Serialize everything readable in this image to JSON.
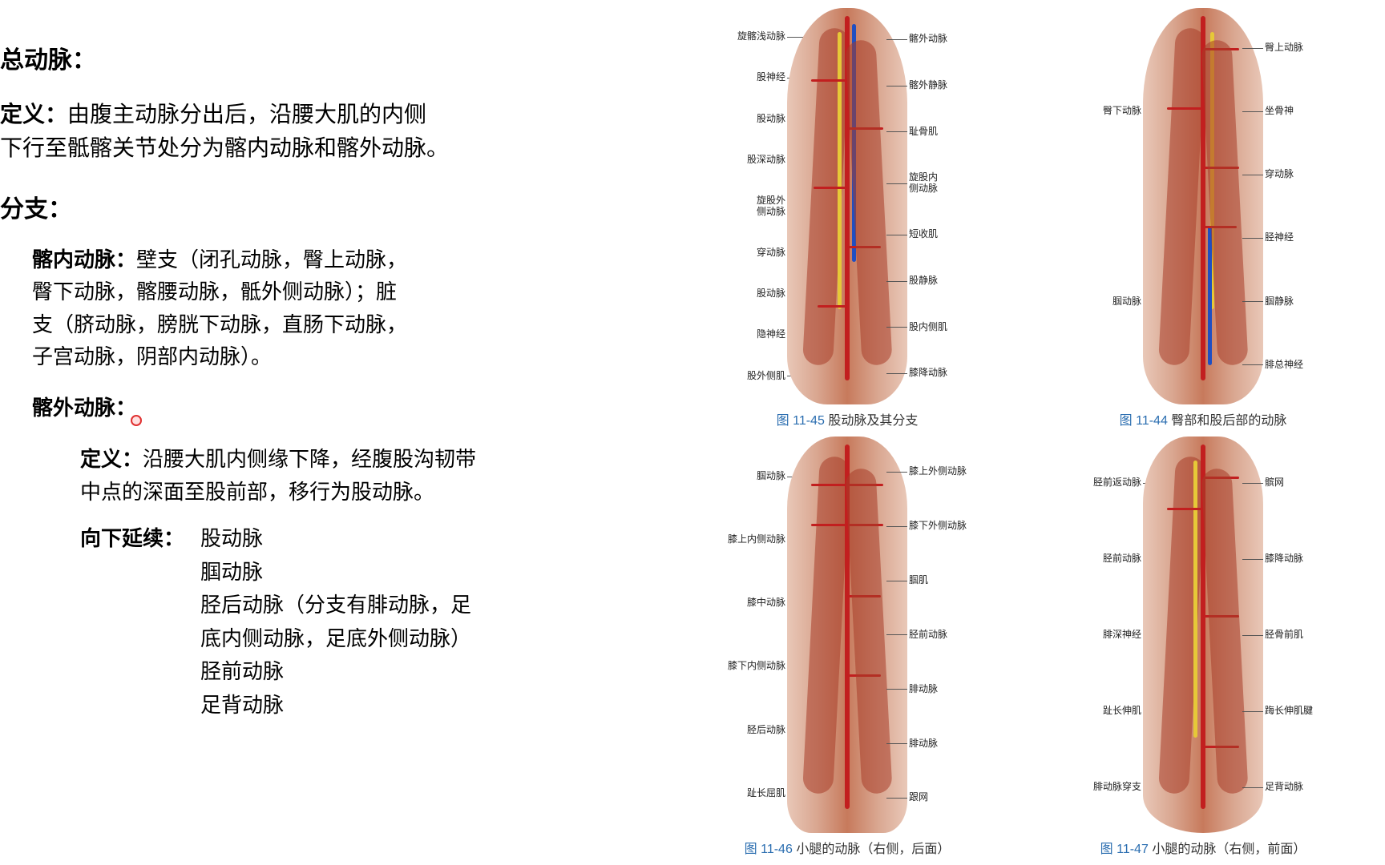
{
  "text": {
    "title": "总动脉：",
    "def_label": "定义：",
    "def_body": "由腹主动脉分出后，沿腰大肌的内侧\n下行至骶髂关节处分为髂内动脉和髂外动脉。",
    "branch_label": "分支：",
    "iliac_int_title": "髂内动脉：",
    "iliac_int_body": "壁支（闭孔动脉，臀上动脉，\n臀下动脉，髂腰动脉，骶外侧动脉）；脏\n支（脐动脉，膀胱下动脉，直肠下动脉，\n子宫动脉，阴部内动脉）。",
    "iliac_ext_title": "髂外动脉：",
    "ext_def_label": "定义：",
    "ext_def_body": "沿腰大肌内侧缘下降，经腹股沟韧带\n中点的深面至股前部，移行为股动脉。",
    "cont_label": "向下延续：",
    "cont_list": "股动脉\n腘动脉\n胫后动脉（分支有腓动脉，足\n底内侧动脉，足底外侧动脉）\n胫前动脉\n足背动脉"
  },
  "figures": [
    {
      "fignum": "图 11-45",
      "figtitle": "股动脉及其分支",
      "colors": {
        "muscle": "#c77a5c",
        "artery": "#c21f1f",
        "vein": "#1f4fc2",
        "nerve": "#e6c838"
      },
      "labels_left": [
        "旋髂浅动脉",
        "股神经",
        "股动脉",
        "股深动脉",
        "旋股外\n侧动脉",
        "穿动脉",
        "股动脉",
        "隐神经",
        "股外侧肌"
      ],
      "labels_right": [
        "髂外动脉",
        "髂外静脉",
        "耻骨肌",
        "旋股内\n侧动脉",
        "短收肌",
        "股静脉",
        "股内侧肌",
        "膝降动脉"
      ]
    },
    {
      "fignum": "图 11-44",
      "figtitle": "臀部和股后部的动脉",
      "colors": {
        "muscle": "#c77a5c",
        "artery": "#c21f1f",
        "vein": "#1f4fc2",
        "nerve": "#e6c838"
      },
      "labels_left": [
        "臀下动脉",
        "腘动脉"
      ],
      "labels_right": [
        "臀上动脉",
        "坐骨神",
        "穿动脉",
        "胫神经",
        "腘静脉",
        "腓总神经"
      ]
    },
    {
      "fignum": "图 11-46",
      "figtitle": "小腿的动脉（右侧，后面）",
      "colors": {
        "muscle": "#c77a5c",
        "artery": "#c21f1f",
        "vein": "#1f4fc2",
        "nerve": "#e6c838"
      },
      "labels_left": [
        "腘动脉",
        "膝上内侧动脉",
        "膝中动脉",
        "膝下内侧动脉",
        "胫后动脉",
        "趾长屈肌"
      ],
      "labels_right": [
        "膝上外侧动脉",
        "膝下外侧动脉",
        "腘肌",
        "胫前动脉",
        "腓动脉",
        "腓动脉",
        "跟网"
      ]
    },
    {
      "fignum": "图 11-47",
      "figtitle": "小腿的动脉（右侧，前面）",
      "colors": {
        "muscle": "#c77a5c",
        "artery": "#c21f1f",
        "vein": "#1f4fc2",
        "nerve": "#e6c838"
      },
      "labels_left": [
        "胫前返动脉",
        "胫前动脉",
        "腓深神经",
        "趾长伸肌",
        "腓动脉穿支"
      ],
      "labels_right": [
        "髌网",
        "膝降动脉",
        "胫骨前肌",
        "踇长伸肌腱",
        "足背动脉"
      ]
    }
  ]
}
